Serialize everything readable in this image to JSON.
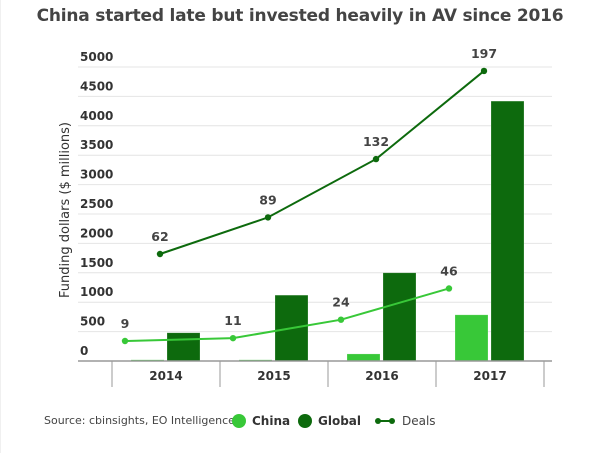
{
  "chart_data": {
    "type": "bar",
    "title": "China started late but invested heavily in AV since 2016",
    "ylabel": "Funding dollars ($ millions)",
    "xlabel": "",
    "categories": [
      "2014",
      "2015",
      "2016",
      "2017"
    ],
    "ylim": [
      0,
      5000
    ],
    "yticks": [
      0,
      500,
      1000,
      1500,
      2000,
      2500,
      3000,
      3500,
      4000,
      4500,
      5000
    ],
    "grid": true,
    "series": [
      {
        "name": "China",
        "type": "bar",
        "color": "#38c838",
        "values": [
          20,
          20,
          120,
          785
        ]
      },
      {
        "name": "Global",
        "type": "bar",
        "color": "#0d6a0d",
        "values": [
          480,
          1120,
          1500,
          4420
        ]
      }
    ],
    "deals": [
      {
        "name": "China deals",
        "color": "#38c838",
        "values": [
          9,
          11,
          24,
          46
        ]
      },
      {
        "name": "Global deals",
        "color": "#0d6a0d",
        "values": [
          62,
          89,
          132,
          197
        ]
      }
    ],
    "legend": {
      "position": "bottom",
      "entries": [
        {
          "label": "China",
          "color": "#38c838",
          "kind": "dot"
        },
        {
          "label": "Global",
          "color": "#0d6a0d",
          "kind": "dot"
        },
        {
          "label": "Deals",
          "color": "#0d6a0d",
          "kind": "line"
        }
      ]
    },
    "source": "Source: cbinsights, EO Intelligence"
  }
}
